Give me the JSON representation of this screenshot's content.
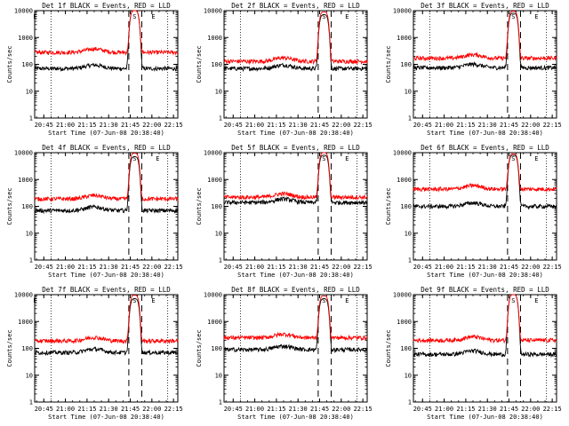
{
  "chart_data": [
    {
      "type": "line",
      "title": "Det 1f BLACK = Events, RED = LLD",
      "xlabel": "Start Time (07-Jun-08 20:38:40)",
      "ylabel": "Counts/sec",
      "yscale": "log",
      "ylim": [
        1,
        10000
      ],
      "yticks": [
        1,
        10,
        100,
        1000,
        10000
      ],
      "xticks": [
        "20:45",
        "21:00",
        "21:15",
        "21:30",
        "21:45",
        "22:00",
        "22:15"
      ],
      "xlim": [
        "20:38:40",
        "22:18:00"
      ],
      "markers": [
        "E",
        "S",
        "E"
      ],
      "marker_times": [
        "20:39",
        "21:48",
        "22:01"
      ],
      "dashed_lines": [
        "21:44",
        "21:53"
      ],
      "dotted_lines": [
        "20:50",
        "22:11"
      ],
      "series": [
        {
          "color": "#000000",
          "base": 70,
          "peak": 10000
        },
        {
          "color": "#ff0000",
          "base": 280,
          "peak": 10000
        }
      ]
    },
    {
      "type": "line",
      "title": "Det 2f BLACK = Events, RED = LLD",
      "xlabel": "Start Time (07-Jun-08 20:38:40)",
      "ylabel": "Counts/sec",
      "yscale": "log",
      "ylim": [
        1,
        10000
      ],
      "yticks": [
        1,
        10,
        100,
        1000,
        10000
      ],
      "xticks": [
        "20:45",
        "21:00",
        "21:15",
        "21:30",
        "21:45",
        "22:00",
        "22:15"
      ],
      "xlim": [
        "20:38:40",
        "22:18:00"
      ],
      "markers": [
        "S",
        "E"
      ],
      "marker_times": [
        "21:48",
        "22:04"
      ],
      "dashed_lines": [
        "21:44",
        "21:53"
      ],
      "dotted_lines": [
        "20:50",
        "22:11"
      ],
      "series": [
        {
          "color": "#000000",
          "base": 70,
          "peak": 7000
        },
        {
          "color": "#ff0000",
          "base": 130,
          "peak": 9000
        }
      ]
    },
    {
      "type": "line",
      "title": "Det 3f BLACK = Events, RED = LLD",
      "xlabel": "Start Time (07-Jun-08 20:38:40)",
      "ylabel": "Counts/sec",
      "yscale": "log",
      "ylim": [
        1,
        10000
      ],
      "yticks": [
        1,
        10,
        100,
        1000,
        10000
      ],
      "xticks": [
        "20:45",
        "21:00",
        "21:15",
        "21:30",
        "21:45",
        "22:00",
        "22:15"
      ],
      "xlim": [
        "20:38:40",
        "22:18:00"
      ],
      "markers": [
        "S",
        "E"
      ],
      "marker_times": [
        "21:48",
        "22:04"
      ],
      "dashed_lines": [
        "21:44",
        "21:53"
      ],
      "dotted_lines": [
        "20:50",
        "22:11"
      ],
      "series": [
        {
          "color": "#000000",
          "base": 75,
          "peak": 8000
        },
        {
          "color": "#ff0000",
          "base": 170,
          "peak": 9500
        }
      ]
    },
    {
      "type": "line",
      "title": "Det 4f BLACK = Events, RED = LLD",
      "xlabel": "Start Time (07-Jun-08 20:38:40)",
      "ylabel": "Counts/sec",
      "yscale": "log",
      "ylim": [
        1,
        10000
      ],
      "yticks": [
        1,
        10,
        100,
        1000,
        10000
      ],
      "xticks": [
        "20:45",
        "21:00",
        "21:15",
        "21:30",
        "21:45",
        "22:00",
        "22:15"
      ],
      "xlim": [
        "20:38:40",
        "22:18:00"
      ],
      "markers": [
        "S",
        "E"
      ],
      "marker_times": [
        "21:48",
        "22:04"
      ],
      "dashed_lines": [
        "21:44",
        "21:53"
      ],
      "dotted_lines": [
        "20:50",
        "22:11"
      ],
      "series": [
        {
          "color": "#000000",
          "base": 70,
          "peak": 7000
        },
        {
          "color": "#ff0000",
          "base": 190,
          "peak": 9500
        }
      ]
    },
    {
      "type": "line",
      "title": "Det 5f BLACK = Events, RED = LLD",
      "xlabel": "Start Time (07-Jun-08 20:38:40)",
      "ylabel": "Counts/sec",
      "yscale": "log",
      "ylim": [
        1,
        10000
      ],
      "yticks": [
        1,
        10,
        100,
        1000,
        10000
      ],
      "xticks": [
        "20:45",
        "21:00",
        "21:15",
        "21:30",
        "21:45",
        "22:00",
        "22:15"
      ],
      "xlim": [
        "20:38:40",
        "22:18:00"
      ],
      "markers": [
        "S",
        "E"
      ],
      "marker_times": [
        "21:48",
        "22:04"
      ],
      "dashed_lines": [
        "21:44",
        "21:53"
      ],
      "dotted_lines": [
        "20:50",
        "22:11"
      ],
      "series": [
        {
          "color": "#000000",
          "base": 140,
          "peak": 8000
        },
        {
          "color": "#ff0000",
          "base": 220,
          "peak": 10000
        }
      ]
    },
    {
      "type": "line",
      "title": "Det 6f BLACK = Events, RED = LLD",
      "xlabel": "Start Time (07-Jun-08 20:38:40)",
      "ylabel": "Counts/sec",
      "yscale": "log",
      "ylim": [
        1,
        10000
      ],
      "yticks": [
        1,
        10,
        100,
        1000,
        10000
      ],
      "xticks": [
        "20:45",
        "21:00",
        "21:15",
        "21:30",
        "21:45",
        "22:00",
        "22:15"
      ],
      "xlim": [
        "20:38:40",
        "22:18:00"
      ],
      "markers": [
        "S",
        "E"
      ],
      "marker_times": [
        "21:48",
        "22:04"
      ],
      "dashed_lines": [
        "21:44",
        "21:53"
      ],
      "dotted_lines": [
        "20:50",
        "22:11"
      ],
      "series": [
        {
          "color": "#000000",
          "base": 100,
          "peak": 8000
        },
        {
          "color": "#ff0000",
          "base": 440,
          "peak": 9000
        }
      ]
    },
    {
      "type": "line",
      "title": "Det 7f BLACK = Events, RED = LLD",
      "xlabel": "Start Time (07-Jun-08 20:38:40)",
      "ylabel": "Counts/sec",
      "yscale": "log",
      "ylim": [
        1,
        10000
      ],
      "yticks": [
        1,
        10,
        100,
        1000,
        10000
      ],
      "xticks": [
        "20:45",
        "21:00",
        "21:15",
        "21:30",
        "21:45",
        "22:00",
        "22:15"
      ],
      "xlim": [
        "20:38:40",
        "22:18:00"
      ],
      "markers": [
        "E",
        "S",
        "E"
      ],
      "marker_times": [
        "20:39",
        "21:48",
        "22:01"
      ],
      "dashed_lines": [
        "21:44",
        "21:53"
      ],
      "dotted_lines": [
        "20:50",
        "22:11"
      ],
      "series": [
        {
          "color": "#000000",
          "base": 70,
          "peak": 7000
        },
        {
          "color": "#ff0000",
          "base": 190,
          "peak": 9500
        }
      ]
    },
    {
      "type": "line",
      "title": "Det 8f BLACK = Events, RED = LLD",
      "xlabel": "Start Time (07-Jun-08 20:38:40)",
      "ylabel": "Counts/sec",
      "yscale": "log",
      "ylim": [
        1,
        10000
      ],
      "yticks": [
        1,
        10,
        100,
        1000,
        10000
      ],
      "xticks": [
        "20:45",
        "21:00",
        "21:15",
        "21:30",
        "21:45",
        "22:00",
        "22:15"
      ],
      "xlim": [
        "20:38:40",
        "22:18:00"
      ],
      "markers": [
        "S",
        "E"
      ],
      "marker_times": [
        "21:48",
        "22:04"
      ],
      "dashed_lines": [
        "21:44",
        "21:53"
      ],
      "dotted_lines": [
        "20:50",
        "22:11"
      ],
      "series": [
        {
          "color": "#000000",
          "base": 90,
          "peak": 7000
        },
        {
          "color": "#ff0000",
          "base": 250,
          "peak": 9000
        }
      ]
    },
    {
      "type": "line",
      "title": "Det 9f BLACK = Events, RED = LLD",
      "xlabel": "Start Time (07-Jun-08 20:38:40)",
      "ylabel": "Counts/sec",
      "yscale": "log",
      "ylim": [
        1,
        10000
      ],
      "yticks": [
        1,
        10,
        100,
        1000,
        10000
      ],
      "xticks": [
        "20:45",
        "21:00",
        "21:15",
        "21:30",
        "21:45",
        "22:00",
        "22:15"
      ],
      "xlim": [
        "20:38:40",
        "22:18:00"
      ],
      "markers": [
        "S",
        "E"
      ],
      "marker_times": [
        "21:48",
        "22:04"
      ],
      "dashed_lines": [
        "21:44",
        "21:53"
      ],
      "dotted_lines": [
        "20:50",
        "22:11"
      ],
      "series": [
        {
          "color": "#000000",
          "base": 60,
          "peak": 10000
        },
        {
          "color": "#ff0000",
          "base": 200,
          "peak": 10000
        }
      ]
    }
  ]
}
